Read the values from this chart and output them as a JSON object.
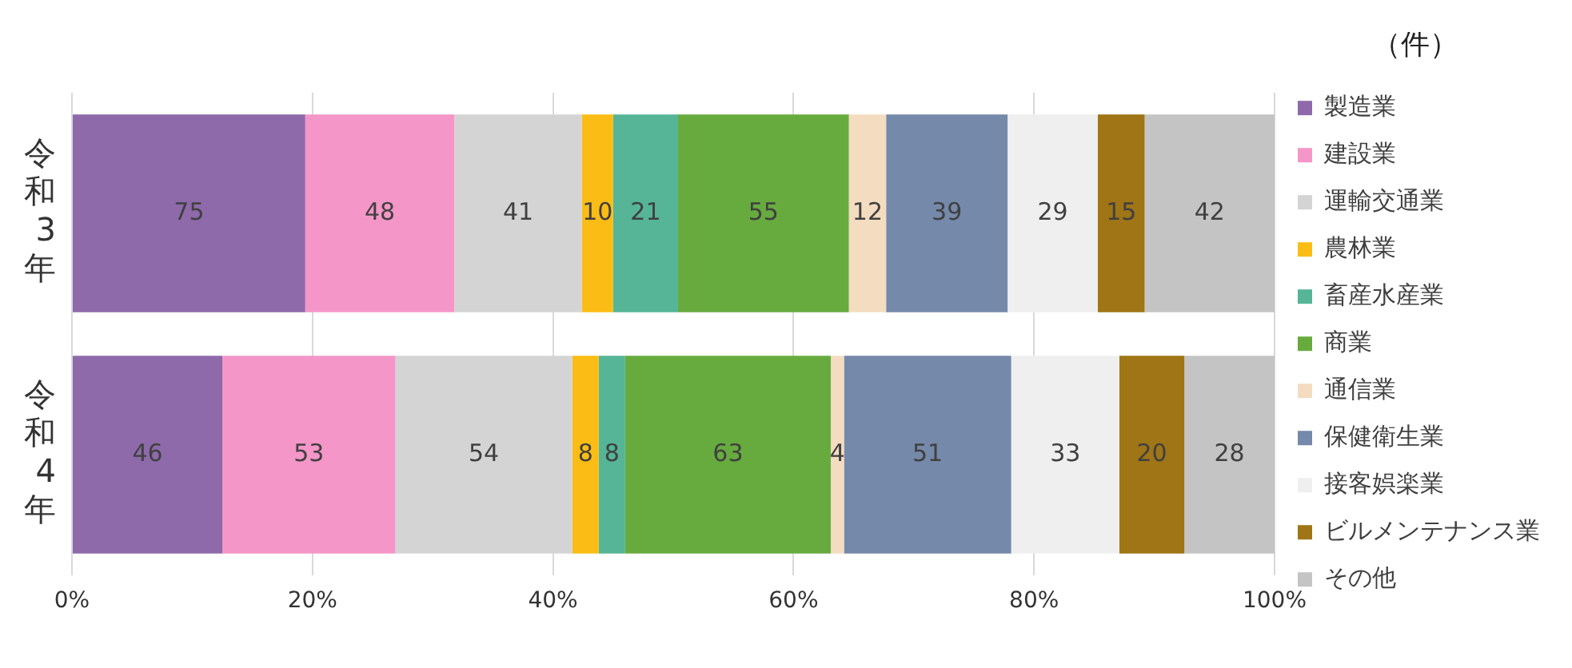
{
  "chart_data": {
    "type": "bar",
    "orientation": "horizontal",
    "stacked": true,
    "legend_title": "（件）",
    "legend": "right",
    "categories": [
      "令和3年",
      "令和4年"
    ],
    "series": [
      {
        "name": "製造業",
        "color": "#8e6aab",
        "values": [
          19.4,
          12.5
        ]
      },
      {
        "name": "建設業",
        "color": "#f596c8",
        "values": [
          12.4,
          14.4
        ]
      },
      {
        "name": "運輸交通業",
        "color": "#d4d4d4",
        "values": [
          10.6,
          14.7
        ]
      },
      {
        "name": "農林業",
        "color": "#fbbd15",
        "values": [
          2.6,
          2.2
        ]
      },
      {
        "name": "畜産水産業",
        "color": "#55b596",
        "values": [
          5.4,
          2.2
        ]
      },
      {
        "name": "商業",
        "color": "#67ab3f",
        "values": [
          14.2,
          17.1
        ]
      },
      {
        "name": "通信業",
        "color": "#f3dcc0",
        "values": [
          3.1,
          1.1
        ]
      },
      {
        "name": "保健衛生業",
        "color": "#7589aa",
        "values": [
          10.1,
          13.9
        ]
      },
      {
        "name": "接客娯楽業",
        "color": "#efefef",
        "values": [
          7.5,
          9.0
        ]
      },
      {
        "name": "ビルメンテナンス業",
        "color": "#9f7515",
        "values": [
          3.9,
          5.4
        ]
      },
      {
        "name": "その他",
        "color": "#c4c4c4",
        "values": [
          10.8,
          7.5
        ]
      }
    ],
    "annotations": [
      "75",
      "48",
      "41",
      "10",
      "21",
      "55",
      "12",
      "39",
      "29",
      "15",
      "42",
      "46",
      "53",
      "54",
      "8",
      "8",
      "63",
      "4",
      "51",
      "33",
      "20",
      "28"
    ],
    "xlim": [
      0,
      100
    ],
    "xticks": [
      {
        "value": 0,
        "label": "0%"
      },
      {
        "value": 20,
        "label": "20%"
      },
      {
        "value": 40,
        "label": "40%"
      },
      {
        "value": 60,
        "label": "60%"
      },
      {
        "value": 80,
        "label": "80%"
      },
      {
        "value": 100,
        "label": "100%"
      }
    ],
    "grid": "x"
  }
}
